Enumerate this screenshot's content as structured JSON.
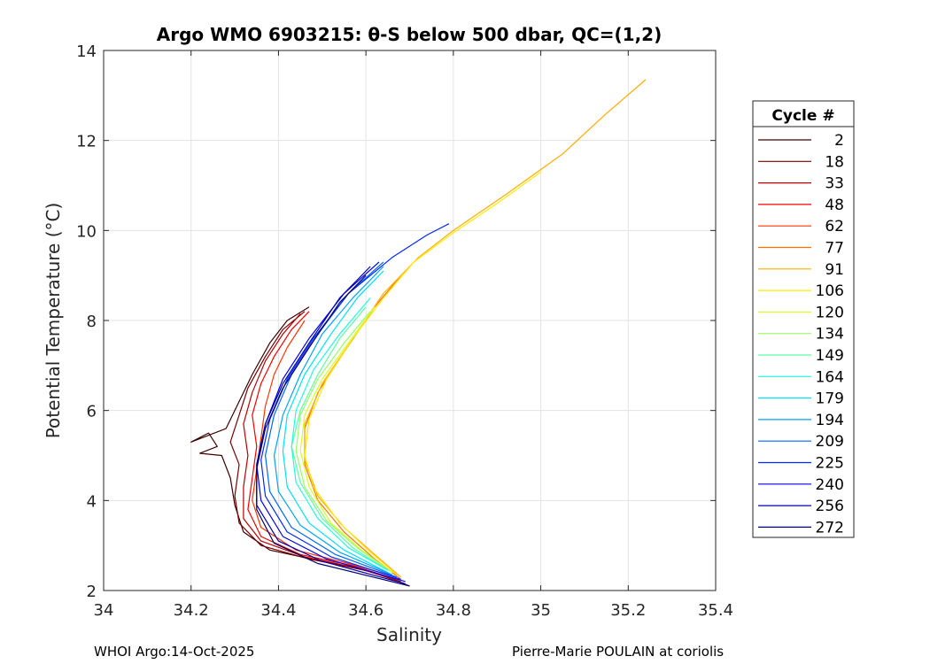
{
  "chart_data": {
    "type": "line",
    "title": "Argo WMO 6903215: θ-S below 500 dbar,  QC=(1,2)",
    "xlabel": "Salinity",
    "ylabel": "Potential Temperature (°C)",
    "xlim": [
      34,
      35.4
    ],
    "ylim": [
      2,
      14
    ],
    "x_ticks": [
      "34",
      "34.2",
      "34.4",
      "34.6",
      "34.8",
      "35",
      "35.2",
      "35.4"
    ],
    "y_ticks": [
      "2",
      "4",
      "6",
      "8",
      "10",
      "12",
      "14"
    ],
    "grid": true,
    "legend": {
      "title": "Cycle #",
      "placement": "right",
      "entries": [
        {
          "label": "2",
          "color": "#3d0000"
        },
        {
          "label": "18",
          "color": "#7a0000"
        },
        {
          "label": "33",
          "color": "#b80000"
        },
        {
          "label": "48",
          "color": "#f50000"
        },
        {
          "label": "62",
          "color": "#ff3300"
        },
        {
          "label": "77",
          "color": "#ff7000"
        },
        {
          "label": "91",
          "color": "#ffad00"
        },
        {
          "label": "106",
          "color": "#ffeb00"
        },
        {
          "label": "120",
          "color": "#d6ff29"
        },
        {
          "label": "134",
          "color": "#99ff66"
        },
        {
          "label": "149",
          "color": "#5cffa3"
        },
        {
          "label": "164",
          "color": "#1fffe0"
        },
        {
          "label": "179",
          "color": "#00e0ff"
        },
        {
          "label": "194",
          "color": "#00a3ff"
        },
        {
          "label": "209",
          "color": "#0066ff"
        },
        {
          "label": "225",
          "color": "#0029ff"
        },
        {
          "label": "240",
          "color": "#0000eb"
        },
        {
          "label": "256",
          "color": "#0000ad"
        },
        {
          "label": "272",
          "color": "#000070"
        }
      ]
    },
    "series": [
      {
        "cycle": 2,
        "color": "#3d0000",
        "points": [
          [
            34.7,
            2.1
          ],
          [
            34.62,
            2.4
          ],
          [
            34.5,
            2.65
          ],
          [
            34.38,
            2.9
          ],
          [
            34.32,
            3.3
          ],
          [
            34.3,
            3.9
          ],
          [
            34.29,
            4.5
          ],
          [
            34.27,
            5.0
          ],
          [
            34.22,
            5.05
          ],
          [
            34.26,
            5.2
          ],
          [
            34.24,
            5.5
          ],
          [
            34.2,
            5.3
          ],
          [
            34.28,
            5.6
          ],
          [
            34.31,
            6.2
          ],
          [
            34.34,
            6.8
          ],
          [
            34.38,
            7.5
          ],
          [
            34.42,
            8.0
          ],
          [
            34.47,
            8.3
          ]
        ]
      },
      {
        "cycle": 18,
        "color": "#7a0000",
        "points": [
          [
            34.69,
            2.15
          ],
          [
            34.6,
            2.45
          ],
          [
            34.47,
            2.7
          ],
          [
            34.36,
            3.0
          ],
          [
            34.31,
            3.5
          ],
          [
            34.3,
            4.1
          ],
          [
            34.31,
            4.8
          ],
          [
            34.29,
            5.3
          ],
          [
            34.31,
            5.9
          ],
          [
            34.33,
            6.5
          ],
          [
            34.37,
            7.2
          ],
          [
            34.41,
            7.8
          ],
          [
            34.46,
            8.2
          ]
        ]
      },
      {
        "cycle": 33,
        "color": "#b80000",
        "points": [
          [
            34.68,
            2.2
          ],
          [
            34.58,
            2.5
          ],
          [
            34.46,
            2.75
          ],
          [
            34.36,
            3.1
          ],
          [
            34.32,
            3.6
          ],
          [
            34.32,
            4.3
          ],
          [
            34.33,
            5.0
          ],
          [
            34.32,
            5.7
          ],
          [
            34.34,
            6.4
          ],
          [
            34.37,
            7.1
          ],
          [
            34.41,
            7.7
          ],
          [
            34.45,
            8.15
          ]
        ]
      },
      {
        "cycle": 48,
        "color": "#f50000",
        "points": [
          [
            34.67,
            2.25
          ],
          [
            34.57,
            2.55
          ],
          [
            34.45,
            2.8
          ],
          [
            34.36,
            3.2
          ],
          [
            34.33,
            3.8
          ],
          [
            34.34,
            4.5
          ],
          [
            34.35,
            5.2
          ],
          [
            34.34,
            5.9
          ],
          [
            34.36,
            6.6
          ],
          [
            34.39,
            7.2
          ],
          [
            34.43,
            7.8
          ],
          [
            34.47,
            8.2
          ]
        ]
      },
      {
        "cycle": 62,
        "color": "#ff3300",
        "points": [
          [
            34.67,
            2.3
          ],
          [
            34.56,
            2.6
          ],
          [
            34.44,
            2.9
          ],
          [
            34.36,
            3.4
          ],
          [
            34.34,
            4.0
          ],
          [
            34.35,
            4.7
          ],
          [
            34.36,
            5.4
          ],
          [
            34.37,
            6.1
          ],
          [
            34.39,
            6.8
          ],
          [
            34.42,
            7.4
          ],
          [
            34.46,
            8.0
          ]
        ]
      },
      {
        "cycle": 77,
        "color": "#ff7000",
        "points": [
          [
            34.68,
            2.25
          ],
          [
            34.62,
            2.7
          ],
          [
            34.55,
            3.3
          ],
          [
            34.49,
            4.0
          ],
          [
            34.46,
            4.8
          ],
          [
            34.46,
            5.6
          ],
          [
            34.49,
            6.4
          ],
          [
            34.55,
            7.3
          ],
          [
            34.62,
            8.3
          ],
          [
            34.68,
            9.0
          ]
        ]
      },
      {
        "cycle": 91,
        "color": "#ffad00",
        "points": [
          [
            34.68,
            2.3
          ],
          [
            34.62,
            2.8
          ],
          [
            34.55,
            3.4
          ],
          [
            34.49,
            4.1
          ],
          [
            34.46,
            4.9
          ],
          [
            34.46,
            5.7
          ],
          [
            34.5,
            6.6
          ],
          [
            34.57,
            7.6
          ],
          [
            34.64,
            8.6
          ],
          [
            34.72,
            9.4
          ],
          [
            34.8,
            10.0
          ],
          [
            34.92,
            10.8
          ],
          [
            35.05,
            11.7
          ],
          [
            35.15,
            12.6
          ],
          [
            35.24,
            13.35
          ]
        ]
      },
      {
        "cycle": 106,
        "color": "#ffeb00",
        "points": [
          [
            34.67,
            2.35
          ],
          [
            34.61,
            2.85
          ],
          [
            34.54,
            3.5
          ],
          [
            34.48,
            4.3
          ],
          [
            34.46,
            5.0
          ],
          [
            34.47,
            5.8
          ],
          [
            34.51,
            6.7
          ],
          [
            34.57,
            7.6
          ],
          [
            34.64,
            8.5
          ],
          [
            34.71,
            9.3
          ],
          [
            34.8,
            9.95
          ],
          [
            34.9,
            10.6
          ],
          [
            35.0,
            11.3
          ]
        ]
      },
      {
        "cycle": 120,
        "color": "#d6ff29",
        "points": [
          [
            34.66,
            2.4
          ],
          [
            34.59,
            2.9
          ],
          [
            34.52,
            3.5
          ],
          [
            34.47,
            4.3
          ],
          [
            34.45,
            5.1
          ],
          [
            34.46,
            5.9
          ],
          [
            34.5,
            6.7
          ],
          [
            34.56,
            7.5
          ],
          [
            34.62,
            8.3
          ]
        ]
      },
      {
        "cycle": 134,
        "color": "#99ff66",
        "points": [
          [
            34.66,
            2.4
          ],
          [
            34.58,
            2.95
          ],
          [
            34.51,
            3.55
          ],
          [
            34.46,
            4.3
          ],
          [
            34.44,
            5.1
          ],
          [
            34.45,
            5.9
          ],
          [
            34.49,
            6.7
          ],
          [
            34.55,
            7.5
          ],
          [
            34.61,
            8.2
          ]
        ]
      },
      {
        "cycle": 149,
        "color": "#5cffa3",
        "points": [
          [
            34.65,
            2.45
          ],
          [
            34.57,
            2.95
          ],
          [
            34.5,
            3.6
          ],
          [
            34.45,
            4.4
          ],
          [
            34.43,
            5.2
          ],
          [
            34.45,
            6.0
          ],
          [
            34.49,
            6.8
          ],
          [
            34.54,
            7.6
          ],
          [
            34.6,
            8.3
          ]
        ]
      },
      {
        "cycle": 164,
        "color": "#1fffe0",
        "points": [
          [
            34.65,
            2.45
          ],
          [
            34.56,
            2.95
          ],
          [
            34.49,
            3.6
          ],
          [
            34.44,
            4.4
          ],
          [
            34.43,
            5.2
          ],
          [
            34.44,
            6.0
          ],
          [
            34.48,
            6.9
          ],
          [
            34.54,
            7.7
          ],
          [
            34.61,
            8.5
          ]
        ]
      },
      {
        "cycle": 179,
        "color": "#00e0ff",
        "points": [
          [
            34.65,
            2.4
          ],
          [
            34.55,
            2.9
          ],
          [
            34.47,
            3.5
          ],
          [
            34.42,
            4.3
          ],
          [
            34.41,
            5.1
          ],
          [
            34.42,
            5.9
          ],
          [
            34.46,
            6.8
          ],
          [
            34.52,
            7.7
          ],
          [
            34.58,
            8.5
          ],
          [
            34.64,
            9.1
          ]
        ]
      },
      {
        "cycle": 194,
        "color": "#00a3ff",
        "points": [
          [
            34.66,
            2.35
          ],
          [
            34.54,
            2.85
          ],
          [
            34.45,
            3.45
          ],
          [
            34.4,
            4.2
          ],
          [
            34.39,
            5.0
          ],
          [
            34.41,
            5.9
          ],
          [
            34.45,
            6.8
          ],
          [
            34.5,
            7.7
          ],
          [
            34.57,
            8.5
          ],
          [
            34.64,
            9.2
          ]
        ]
      },
      {
        "cycle": 209,
        "color": "#0066ff",
        "points": [
          [
            34.67,
            2.3
          ],
          [
            34.53,
            2.8
          ],
          [
            34.43,
            3.4
          ],
          [
            34.38,
            4.2
          ],
          [
            34.37,
            5.0
          ],
          [
            34.39,
            5.9
          ],
          [
            34.43,
            6.8
          ],
          [
            34.49,
            7.7
          ],
          [
            34.56,
            8.6
          ],
          [
            34.64,
            9.3
          ]
        ]
      },
      {
        "cycle": 225,
        "color": "#0029ff",
        "points": [
          [
            34.68,
            2.25
          ],
          [
            34.52,
            2.75
          ],
          [
            34.42,
            3.3
          ],
          [
            34.37,
            4.1
          ],
          [
            34.36,
            4.9
          ],
          [
            34.38,
            5.8
          ],
          [
            34.42,
            6.7
          ],
          [
            34.48,
            7.6
          ],
          [
            34.56,
            8.6
          ],
          [
            34.66,
            9.4
          ],
          [
            34.74,
            9.9
          ],
          [
            34.79,
            10.15
          ]
        ]
      },
      {
        "cycle": 240,
        "color": "#0000eb",
        "points": [
          [
            34.69,
            2.2
          ],
          [
            34.51,
            2.7
          ],
          [
            34.41,
            3.2
          ],
          [
            34.36,
            4.0
          ],
          [
            34.35,
            4.8
          ],
          [
            34.37,
            5.7
          ],
          [
            34.41,
            6.7
          ],
          [
            34.47,
            7.6
          ],
          [
            34.55,
            8.6
          ],
          [
            34.63,
            9.3
          ]
        ]
      },
      {
        "cycle": 256,
        "color": "#0000ad",
        "points": [
          [
            34.69,
            2.15
          ],
          [
            34.5,
            2.65
          ],
          [
            34.4,
            3.1
          ],
          [
            34.35,
            3.9
          ],
          [
            34.35,
            4.8
          ],
          [
            34.37,
            5.7
          ],
          [
            34.41,
            6.6
          ],
          [
            34.47,
            7.5
          ],
          [
            34.54,
            8.5
          ],
          [
            34.61,
            9.2
          ]
        ]
      },
      {
        "cycle": 272,
        "color": "#000070",
        "points": [
          [
            34.7,
            2.1
          ],
          [
            34.49,
            2.6
          ],
          [
            34.39,
            3.05
          ],
          [
            34.35,
            3.8
          ],
          [
            34.35,
            4.7
          ],
          [
            34.37,
            5.6
          ],
          [
            34.41,
            6.5
          ],
          [
            34.47,
            7.4
          ],
          [
            34.54,
            8.4
          ],
          [
            34.6,
            9.0
          ]
        ]
      }
    ]
  },
  "footer": {
    "left": "WHOI Argo:14-Oct-2025",
    "right": "Pierre-Marie POULAIN at coriolis"
  }
}
